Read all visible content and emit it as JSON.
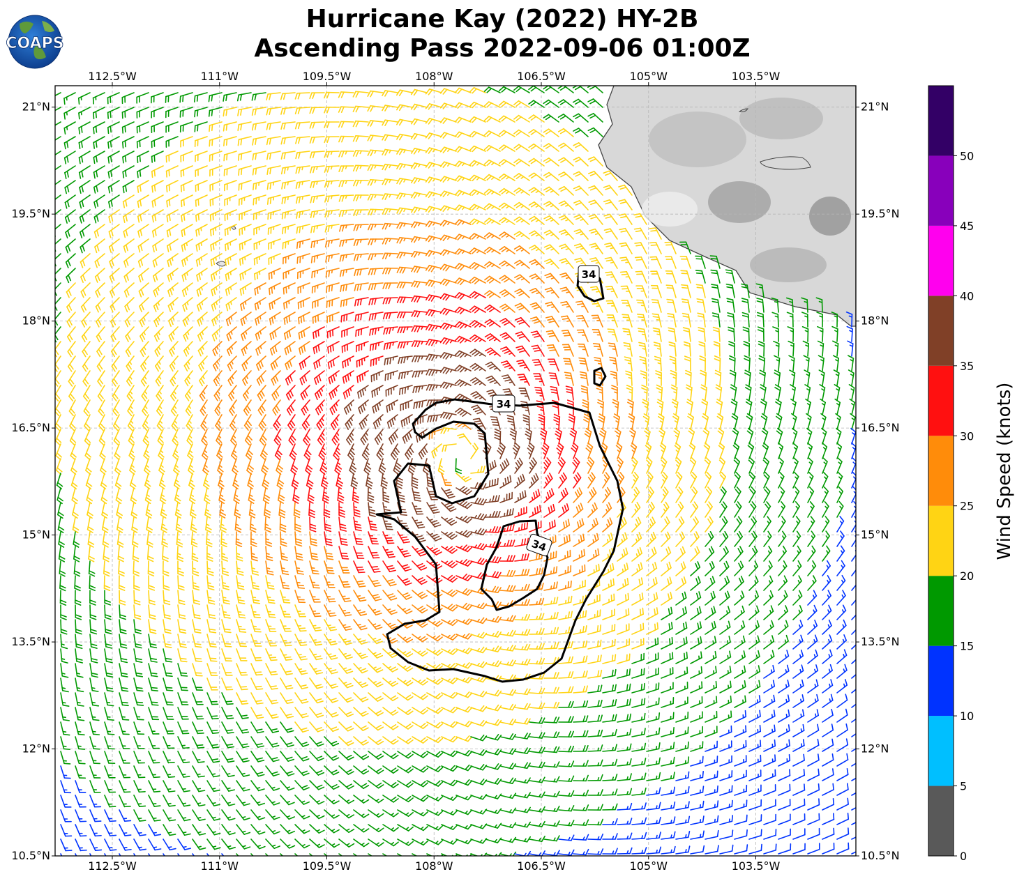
{
  "title": {
    "line1": "Hurricane Kay (2022) HY-2B",
    "line2": "Ascending Pass 2022-09-06 01:00Z"
  },
  "logo": {
    "text": "COAPS"
  },
  "map": {
    "lon_range": [
      -113.3,
      -102.1
    ],
    "lat_range": [
      10.5,
      21.3
    ],
    "lon_ticks": [
      {
        "value": -112.5,
        "label": "112.5°W"
      },
      {
        "value": -111.0,
        "label": "111°W"
      },
      {
        "value": -109.5,
        "label": "109.5°W"
      },
      {
        "value": -108.0,
        "label": "108°W"
      },
      {
        "value": -106.5,
        "label": "106.5°W"
      },
      {
        "value": -105.0,
        "label": "105°W"
      },
      {
        "value": -103.5,
        "label": "103.5°W"
      }
    ],
    "lat_ticks": [
      {
        "value": 21.0,
        "label": "21°N"
      },
      {
        "value": 19.5,
        "label": "19.5°N"
      },
      {
        "value": 18.0,
        "label": "18°N"
      },
      {
        "value": 16.5,
        "label": "16.5°N"
      },
      {
        "value": 15.0,
        "label": "15°N"
      },
      {
        "value": 13.5,
        "label": "13.5°N"
      },
      {
        "value": 12.0,
        "label": "12°N"
      },
      {
        "value": 10.5,
        "label": "10.5°N"
      }
    ],
    "grid": true,
    "storm_center": {
      "lon": -107.6,
      "lat": 16.1
    },
    "contour_level_label": "34",
    "colors": {
      "land_light": "#e6e6e6",
      "land_dark": "#8a8a8a",
      "coastline": "#444444",
      "contour": "#000000"
    }
  },
  "colorbar": {
    "label": "Wind Speed (knots)",
    "bins": [
      {
        "min": 0,
        "max": 5,
        "color": "#595959"
      },
      {
        "min": 5,
        "max": 10,
        "color": "#00bfff"
      },
      {
        "min": 10,
        "max": 15,
        "color": "#0033ff"
      },
      {
        "min": 15,
        "max": 20,
        "color": "#009900"
      },
      {
        "min": 20,
        "max": 25,
        "color": "#ffd414"
      },
      {
        "min": 25,
        "max": 30,
        "color": "#ff8c0a"
      },
      {
        "min": 30,
        "max": 35,
        "color": "#ff1010"
      },
      {
        "min": 35,
        "max": 40,
        "color": "#804027"
      },
      {
        "min": 40,
        "max": 45,
        "color": "#ff00ee"
      },
      {
        "min": 45,
        "max": 50,
        "color": "#8800bb"
      },
      {
        "min": 50,
        "max": 55,
        "color": "#330066"
      }
    ],
    "tick_values": [
      0,
      5,
      10,
      15,
      20,
      25,
      30,
      35,
      40,
      45,
      50
    ],
    "tick_labels": [
      "0",
      "5",
      "10",
      "15",
      "20",
      "25",
      "30",
      "35",
      "40",
      "45",
      "50"
    ]
  }
}
